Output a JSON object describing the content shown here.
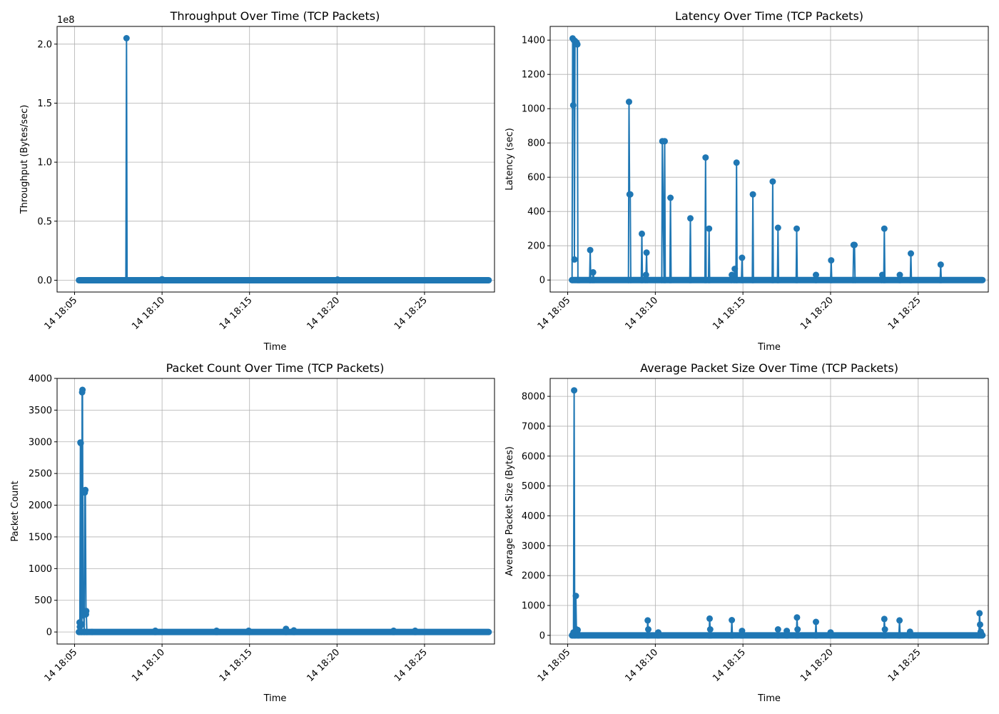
{
  "chart_data": [
    {
      "type": "line",
      "title": "Throughput Over Time (TCP Packets)",
      "xlabel": "Time",
      "ylabel": "Throughput (Bytes/sec)",
      "y_offset_label": "1e8",
      "x_ticks": [
        "14 18:05",
        "14 18:10",
        "14 18:15",
        "14 18:20",
        "14 18:25"
      ],
      "y_ticks": [
        "0.0",
        "0.5",
        "1.0",
        "1.5",
        "2.0"
      ],
      "y_tick_values": [
        0,
        50000000,
        100000000,
        150000000,
        200000000
      ],
      "xlim": [
        "18:04:00",
        "18:29:00"
      ],
      "ylim": [
        -10000000,
        215000000
      ],
      "x_range_data": [
        "18:05:15",
        "18:28:40"
      ],
      "grid": true,
      "series": [
        {
          "x": [
            "18:07:56",
            "18:07:58",
            "18:08:00",
            "18:10:00",
            "18:20:02"
          ],
          "values": [
            0,
            205000000,
            0,
            800000,
            600000
          ]
        }
      ]
    },
    {
      "type": "line",
      "title": "Latency Over Time (TCP Packets)",
      "xlabel": "Time",
      "ylabel": "Latency (sec)",
      "x_ticks": [
        "14 18:05",
        "14 18:10",
        "14 18:15",
        "14 18:20",
        "14 18:25"
      ],
      "y_ticks": [
        "0",
        "200",
        "400",
        "600",
        "800",
        "1000",
        "1200",
        "1400"
      ],
      "y_tick_values": [
        0,
        200,
        400,
        600,
        800,
        1000,
        1200,
        1400
      ],
      "xlim": [
        "18:04:00",
        "18:29:00"
      ],
      "ylim": [
        -70,
        1480
      ],
      "x_range_data": [
        "18:05:15",
        "18:28:40"
      ],
      "grid": true,
      "series": [
        {
          "x": [
            "18:05:15",
            "18:05:17",
            "18:05:19",
            "18:05:21",
            "18:05:23",
            "18:05:25",
            "18:05:27",
            "18:05:29",
            "18:05:31",
            "18:05:33",
            "18:05:35",
            "18:05:40",
            "18:06:15",
            "18:06:17",
            "18:06:19",
            "18:06:25",
            "18:06:27",
            "18:06:30",
            "18:08:28",
            "18:08:30",
            "18:08:32",
            "18:08:34",
            "18:08:36",
            "18:09:12",
            "18:09:14",
            "18:09:16",
            "18:09:26",
            "18:09:28",
            "18:09:30",
            "18:09:32",
            "18:10:22",
            "18:10:24",
            "18:10:30",
            "18:10:32",
            "18:10:34",
            "18:10:50",
            "18:10:52",
            "18:10:54",
            "18:11:58",
            "18:12:00",
            "18:12:02",
            "18:12:50",
            "18:12:52",
            "18:12:54",
            "18:13:02",
            "18:13:04",
            "18:13:06",
            "18:14:20",
            "18:14:22",
            "18:14:30",
            "18:14:32",
            "18:14:36",
            "18:14:38",
            "18:14:40",
            "18:14:55",
            "18:14:57",
            "18:14:59",
            "18:15:32",
            "18:15:34",
            "18:15:36",
            "18:16:40",
            "18:16:42",
            "18:16:44",
            "18:16:58",
            "18:17:00",
            "18:17:02",
            "18:18:02",
            "18:18:04",
            "18:18:06",
            "18:19:08",
            "18:19:10",
            "18:19:12",
            "18:20:00",
            "18:20:02",
            "18:20:04",
            "18:21:17",
            "18:21:19",
            "18:21:22",
            "18:21:24",
            "18:22:55",
            "18:22:57",
            "18:23:02",
            "18:23:04",
            "18:23:06",
            "18:23:55",
            "18:23:57",
            "18:23:59",
            "18:24:33",
            "18:24:35",
            "18:24:37",
            "18:26:15",
            "18:26:17",
            "18:26:19"
          ],
          "values": [
            0,
            1410,
            1020,
            1400,
            120,
            1395,
            1390,
            1380,
            1385,
            1375,
            0,
            0,
            0,
            175,
            0,
            0,
            45,
            0,
            0,
            1040,
            500,
            500,
            0,
            0,
            270,
            0,
            0,
            30,
            160,
            0,
            0,
            810,
            0,
            810,
            0,
            0,
            480,
            0,
            0,
            360,
            0,
            0,
            715,
            0,
            0,
            300,
            0,
            0,
            30,
            0,
            65,
            0,
            685,
            0,
            0,
            130,
            0,
            0,
            500,
            0,
            0,
            575,
            0,
            0,
            305,
            0,
            0,
            300,
            0,
            0,
            30,
            0,
            0,
            115,
            0,
            0,
            205,
            205,
            0,
            0,
            30,
            0,
            300,
            0,
            0,
            30,
            0,
            0,
            155,
            0,
            0,
            90,
            0
          ]
        }
      ]
    },
    {
      "type": "line",
      "title": "Packet Count Over Time (TCP Packets)",
      "xlabel": "Time",
      "ylabel": "Packet Count",
      "x_ticks": [
        "14 18:05",
        "14 18:10",
        "14 18:15",
        "14 18:20",
        "14 18:25"
      ],
      "y_ticks": [
        "0",
        "500",
        "1000",
        "1500",
        "2000",
        "2500",
        "3000",
        "3500",
        "4000"
      ],
      "y_tick_values": [
        0,
        500,
        1000,
        1500,
        2000,
        2500,
        3000,
        3500,
        4000
      ],
      "xlim": [
        "18:04:00",
        "18:29:00"
      ],
      "ylim": [
        -190,
        4000
      ],
      "x_range_data": [
        "18:05:15",
        "18:28:40"
      ],
      "grid": true,
      "series": [
        {
          "x": [
            "18:05:15",
            "18:05:17",
            "18:05:18",
            "18:05:20",
            "18:05:21",
            "18:05:23",
            "18:05:25",
            "18:05:26",
            "18:05:27",
            "18:05:29",
            "18:05:31",
            "18:05:33",
            "18:05:35",
            "18:05:37",
            "18:05:39",
            "18:05:40",
            "18:05:42",
            "18:06:00",
            "18:09:35",
            "18:09:37",
            "18:09:39",
            "18:13:05",
            "18:13:07",
            "18:13:09",
            "18:14:55",
            "18:14:57",
            "18:14:59",
            "18:17:03",
            "18:17:05",
            "18:17:07",
            "18:17:30",
            "18:17:32",
            "18:17:34",
            "18:23:12",
            "18:23:14",
            "18:23:16",
            "18:24:26",
            "18:24:28",
            "18:24:30"
          ],
          "values": [
            0,
            150,
            80,
            2990,
            2980,
            0,
            120,
            3780,
            3820,
            260,
            300,
            0,
            2200,
            2240,
            280,
            330,
            0,
            0,
            0,
            20,
            0,
            0,
            20,
            0,
            0,
            20,
            0,
            0,
            50,
            0,
            0,
            25,
            0,
            0,
            20,
            0,
            0,
            20,
            0
          ]
        }
      ]
    },
    {
      "type": "line",
      "title": "Average Packet Size Over Time (TCP Packets)",
      "xlabel": "Time",
      "ylabel": "Average Packet Size (Bytes)",
      "x_ticks": [
        "14 18:05",
        "14 18:10",
        "14 18:15",
        "14 18:20",
        "14 18:25"
      ],
      "y_ticks": [
        "0",
        "1000",
        "2000",
        "3000",
        "4000",
        "5000",
        "6000",
        "7000",
        "8000"
      ],
      "y_tick_values": [
        0,
        1000,
        2000,
        3000,
        4000,
        5000,
        6000,
        7000,
        8000
      ],
      "xlim": [
        "18:04:00",
        "18:29:00"
      ],
      "ylim": [
        -290,
        8600
      ],
      "x_range_data": [
        "18:05:15",
        "18:28:40"
      ],
      "grid": true,
      "series": [
        {
          "x": [
            "18:05:15",
            "18:05:20",
            "18:05:22",
            "18:05:24",
            "18:05:28",
            "18:05:30",
            "18:05:32",
            "18:05:34",
            "18:05:36",
            "18:09:32",
            "18:09:34",
            "18:09:36",
            "18:09:38",
            "18:10:08",
            "18:10:10",
            "18:10:12",
            "18:13:04",
            "18:13:06",
            "18:13:08",
            "18:13:10",
            "18:14:20",
            "18:14:22",
            "18:14:24",
            "18:14:55",
            "18:14:57",
            "18:14:59",
            "18:16:58",
            "18:17:00",
            "18:17:02",
            "18:17:28",
            "18:17:30",
            "18:17:32",
            "18:18:03",
            "18:18:05",
            "18:18:07",
            "18:18:09",
            "18:19:08",
            "18:19:10",
            "18:19:12",
            "18:19:58",
            "18:20:00",
            "18:20:02",
            "18:23:02",
            "18:23:04",
            "18:23:06",
            "18:23:08",
            "18:23:54",
            "18:23:56",
            "18:23:58",
            "18:24:30",
            "18:24:32",
            "18:24:34",
            "18:28:28",
            "18:28:30",
            "18:28:32",
            "18:28:34",
            "18:28:36",
            "18:28:38"
          ],
          "values": [
            0,
            100,
            8200,
            0,
            1320,
            200,
            120,
            180,
            0,
            0,
            500,
            200,
            0,
            0,
            100,
            0,
            0,
            560,
            200,
            0,
            0,
            510,
            0,
            0,
            150,
            0,
            0,
            200,
            0,
            0,
            150,
            0,
            0,
            600,
            200,
            0,
            0,
            450,
            0,
            0,
            100,
            0,
            0,
            550,
            200,
            0,
            0,
            500,
            0,
            0,
            120,
            0,
            0,
            740,
            360,
            120,
            60,
            0
          ]
        }
      ]
    }
  ]
}
